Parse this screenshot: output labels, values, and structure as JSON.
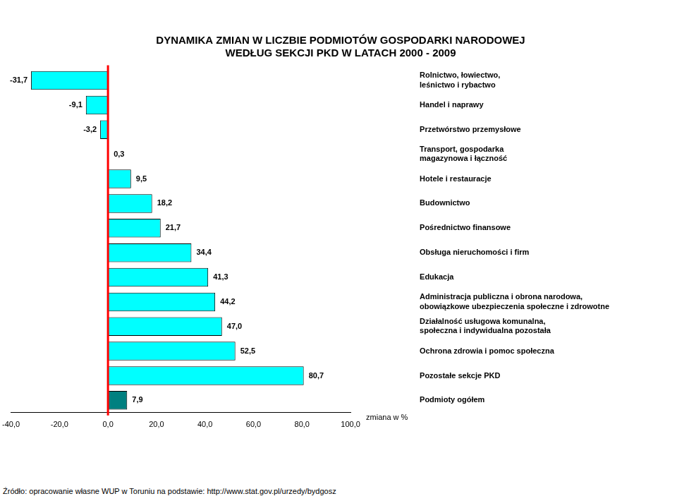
{
  "chart_data": {
    "type": "bar",
    "title": "DYNAMIKA ZMIAN W LICZBIE PODMIOTÓW GOSPODARKI NARODOWEJ\nWEDŁUG SEKCJI PKD W LATACH 2000 - 2009",
    "x_label": "zmiana w %",
    "source": "Źródło:  opracowanie własne WUP w Toruniu na podstawie: http://www.stat.gov.pl/urzedy/bydgosz",
    "orientation": "horizontal",
    "categories": [
      "Rolnictwo, łowiectwo,\nleśnictwo i rybactwo",
      "Handel i naprawy",
      "Przetwórstwo przemysłowe",
      "Transport, gospodarka\nmagazynowa i łączność",
      "Hotele i restauracje",
      "Budownictwo",
      "Pośrednictwo finansowe",
      "Obsługa nieruchomości i firm",
      "Edukacja",
      "Administracja publiczna i obrona narodowa,\nobowiązkowe ubezpieczenia społeczne i zdrowotne",
      "Działalność usługowa komunalna,\nspołeczna i indywidualna pozostała",
      "Ochrona zdrowia i pomoc społeczna",
      "Pozostałe sekcje PKD",
      "Podmioty ogółem"
    ],
    "values": [
      -31.7,
      -9.1,
      -3.2,
      0.3,
      9.5,
      18.2,
      21.7,
      34.4,
      41.3,
      44.2,
      47.0,
      52.5,
      80.7,
      7.9
    ],
    "value_labels": [
      "-31,7",
      "-9,1",
      "-3,2",
      "0,3",
      "9,5",
      "18,2",
      "21,7",
      "34,4",
      "41,3",
      "44,2",
      "47,0",
      "52,5",
      "80,7",
      "7,9"
    ],
    "colors": [
      "#00ffff",
      "#00ffff",
      "#00ffff",
      "#00ffff",
      "#00ffff",
      "#00ffff",
      "#00ffff",
      "#00ffff",
      "#00ffff",
      "#00ffff",
      "#00ffff",
      "#00ffff",
      "#00ffff",
      "#008080"
    ],
    "xlim": [
      -40,
      100
    ],
    "xticks": [
      {
        "value": -40,
        "label": "-40,0"
      },
      {
        "value": -20,
        "label": "-20,0"
      },
      {
        "value": 0,
        "label": "0,0"
      },
      {
        "value": 20,
        "label": "20,0"
      },
      {
        "value": 40,
        "label": "40,0"
      },
      {
        "value": 60,
        "label": "60,0"
      },
      {
        "value": 80,
        "label": "80,0"
      },
      {
        "value": 100,
        "label": "100,0"
      }
    ],
    "grid": false,
    "data_labels": true
  }
}
